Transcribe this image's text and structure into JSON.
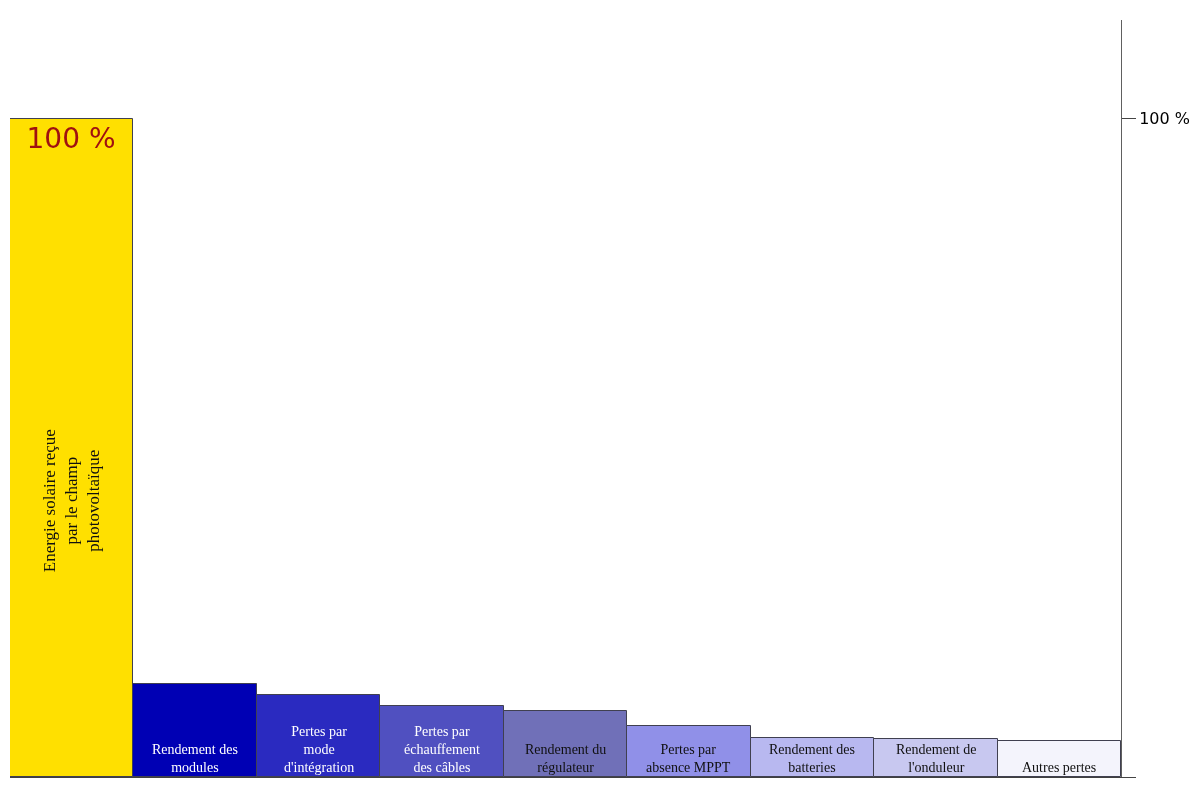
{
  "chart_data": {
    "type": "bar",
    "categories": [
      "Energie solaire reçue par le champ photovoltaïque",
      "Rendement des modules",
      "Pertes par mode d'intégration",
      "Pertes par échauffement des câbles",
      "Rendement du régulateur",
      "Pertes par absence MPPT",
      "Rendement des batteries",
      "Rendement de l'onduleur",
      "Autres pertes"
    ],
    "values": [
      100,
      14.1,
      12.4,
      10.8,
      10.0,
      7.8,
      6.0,
      5.7,
      5.4
    ],
    "colors": [
      "#ffe000",
      "#0000b4",
      "#2a2ac0",
      "#5050c0",
      "#7070b8",
      "#9090e8",
      "#b8b8f0",
      "#c8c8f0",
      "#f4f4fc"
    ],
    "value_labels": [
      "100 %",
      null,
      null,
      null,
      null,
      null,
      null,
      null,
      null
    ],
    "ylim": [
      0,
      115
    ],
    "yticks": [
      {
        "value": 0,
        "label": null
      },
      {
        "value": 100,
        "label": "100 %"
      }
    ],
    "tick_labels": "y"
  }
}
